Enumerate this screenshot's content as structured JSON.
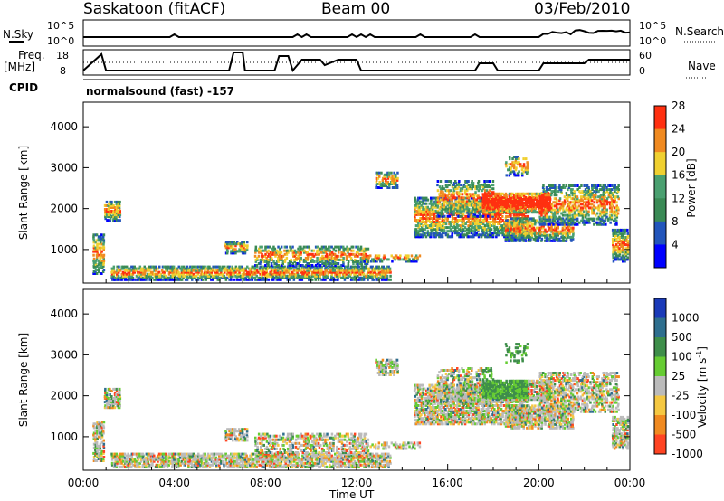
{
  "header": {
    "title": "Saskatoon (fitACF)",
    "beam": "Beam 00",
    "date": "03/Feb/2010"
  },
  "top_panels": {
    "nsky_label": "N.Sky",
    "nsky_top_tick": "10^5",
    "nsky_bottom_tick": "10^0",
    "nsearch_label": "N.Search",
    "nsearch_top_tick": "10^5",
    "nsearch_bottom_tick": "10^0",
    "freq_label_1": "Freq.",
    "freq_label_2": "[MHz]",
    "freq_top_tick": "18",
    "freq_bottom_tick": "8",
    "nave_label": "Nave",
    "nave_top_tick": "60",
    "nave_bottom_tick": "0",
    "cpid_label": "CPID",
    "cpid_text": "normalsound (fast) -157"
  },
  "colors": {
    "power_scale": [
      "#0000ff",
      "#2255bb",
      "#3a8a55",
      "#4aa070",
      "#f0d030",
      "#f08a20",
      "#ff3010"
    ],
    "velocity_scale": [
      "#1a3ab8",
      "#2e6e8e",
      "#3e8e4a",
      "#66cc33",
      "#bbbbbb",
      "#f5c842",
      "#f08a20",
      "#ff4422"
    ]
  },
  "chart_data": [
    {
      "type": "heatmap",
      "name": "power",
      "ylabel": "Slant Range [km]",
      "yticks": [
        "1000",
        "2000",
        "3000",
        "4000"
      ],
      "ylim": [
        180,
        4600
      ],
      "colorbar_label": "Power [dB]",
      "colorbar_ticks": [
        "4",
        "8",
        "12",
        "16",
        "20",
        "24",
        "28"
      ]
    },
    {
      "type": "heatmap",
      "name": "velocity",
      "ylabel": "Slant Range [km]",
      "yticks": [
        "1000",
        "2000",
        "3000",
        "4000"
      ],
      "ylim": [
        180,
        4600
      ],
      "colorbar_label": "Velocity [m s^-1]",
      "colorbar_ticks": [
        "1000",
        "500",
        "100",
        "25",
        "-25",
        "-100",
        "-500",
        "-1000"
      ]
    }
  ],
  "x_axis": {
    "label": "Time UT",
    "ticks": [
      "00:00",
      "04:00",
      "08:00",
      "12:00",
      "16:00",
      "20:00",
      "00:00"
    ]
  }
}
